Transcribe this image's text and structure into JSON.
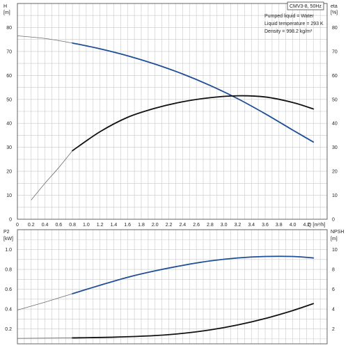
{
  "title_box": "CMV3-8, 50Hz",
  "notes": [
    "Pumped liquid = Water",
    "Liquid temperature = 293 K",
    "Density = 998.2 kg/m³"
  ],
  "colors": {
    "grid": "#c8c8c8",
    "frame": "#555555",
    "curve_dark": "#111111",
    "curve_blue": "#1f4e96",
    "curve_thin": "#6d6d6d"
  },
  "chart_data": [
    {
      "type": "line",
      "name": "top",
      "axes": {
        "x": {
          "label": "Q [m³/h]",
          "ticks": [
            "0",
            "0.2",
            "0.4",
            "0.6",
            "0.8",
            "1.0",
            "1.2",
            "1.4",
            "1.6",
            "1.8",
            "2.0",
            "2.2",
            "2.4",
            "2.6",
            "2.8",
            "3.0",
            "3.2",
            "3.4",
            "3.6",
            "3.8",
            "4.0",
            "4.2"
          ],
          "range": [
            0,
            4.5
          ]
        },
        "y_left": {
          "label_lines": [
            "H",
            "[m]"
          ],
          "ticks": [
            "0",
            "10",
            "20",
            "30",
            "40",
            "50",
            "60",
            "70",
            "80"
          ],
          "range": [
            0,
            90
          ]
        },
        "y_right": {
          "label_lines": [
            "eta",
            "[%]"
          ],
          "ticks": [
            "0",
            "10",
            "20",
            "30",
            "40",
            "50",
            "60",
            "70",
            "80"
          ],
          "range": [
            0,
            90
          ]
        }
      },
      "grid": true,
      "series": [
        {
          "role": "H",
          "axis": "left",
          "style": "blue",
          "x": [
            0,
            0.4,
            0.8,
            1.2,
            1.6,
            2.0,
            2.4,
            2.8,
            3.2,
            3.6,
            4.0,
            4.3
          ],
          "y": [
            76.5,
            75.4,
            73.5,
            71.1,
            68.2,
            64.7,
            60.6,
            55.8,
            50.3,
            44.0,
            37.2,
            32.2
          ],
          "thin_until_x": 0.8
        },
        {
          "role": "eta",
          "axis": "right",
          "style": "dark",
          "x": [
            0.2,
            0.4,
            0.6,
            0.8,
            1.2,
            1.6,
            2.0,
            2.4,
            2.8,
            3.2,
            3.6,
            4.0,
            4.3
          ],
          "y": [
            8.0,
            15.0,
            21.5,
            28.6,
            36.5,
            42.5,
            46.3,
            49.0,
            50.7,
            51.5,
            51.0,
            48.7,
            46.0
          ],
          "thin_until_x": 0.8
        }
      ]
    },
    {
      "type": "line",
      "name": "bottom",
      "axes": {
        "x": {
          "range": [
            0,
            4.5
          ]
        },
        "y_left": {
          "label_lines": [
            "P2",
            "[kW]"
          ],
          "ticks": [
            "0.2",
            "0.4",
            "0.6",
            "0.8",
            "1.0"
          ],
          "range": [
            0.05,
            1.2
          ]
        },
        "y_right": {
          "label_lines": [
            "NPSH",
            "[m]"
          ],
          "ticks": [
            "2",
            "4",
            "6",
            "8",
            "10"
          ],
          "range": [
            0.5,
            12
          ]
        }
      },
      "grid": true,
      "series": [
        {
          "role": "P2",
          "axis": "left",
          "style": "blue",
          "x": [
            0,
            0.4,
            0.8,
            1.2,
            1.6,
            2.0,
            2.4,
            2.8,
            3.2,
            3.6,
            4.0,
            4.3
          ],
          "y": [
            0.39,
            0.47,
            0.555,
            0.64,
            0.72,
            0.785,
            0.84,
            0.885,
            0.915,
            0.93,
            0.93,
            0.915
          ],
          "thin_until_x": 0.8
        },
        {
          "role": "NPSH",
          "axis": "right",
          "style": "dark",
          "x": [
            0,
            0.8,
            1.4,
            2.0,
            2.4,
            2.8,
            3.2,
            3.6,
            4.0,
            4.3
          ],
          "y": [
            1.05,
            1.1,
            1.17,
            1.33,
            1.55,
            1.9,
            2.4,
            3.05,
            3.85,
            4.55
          ],
          "thin_until_x": 0.8
        }
      ]
    }
  ]
}
